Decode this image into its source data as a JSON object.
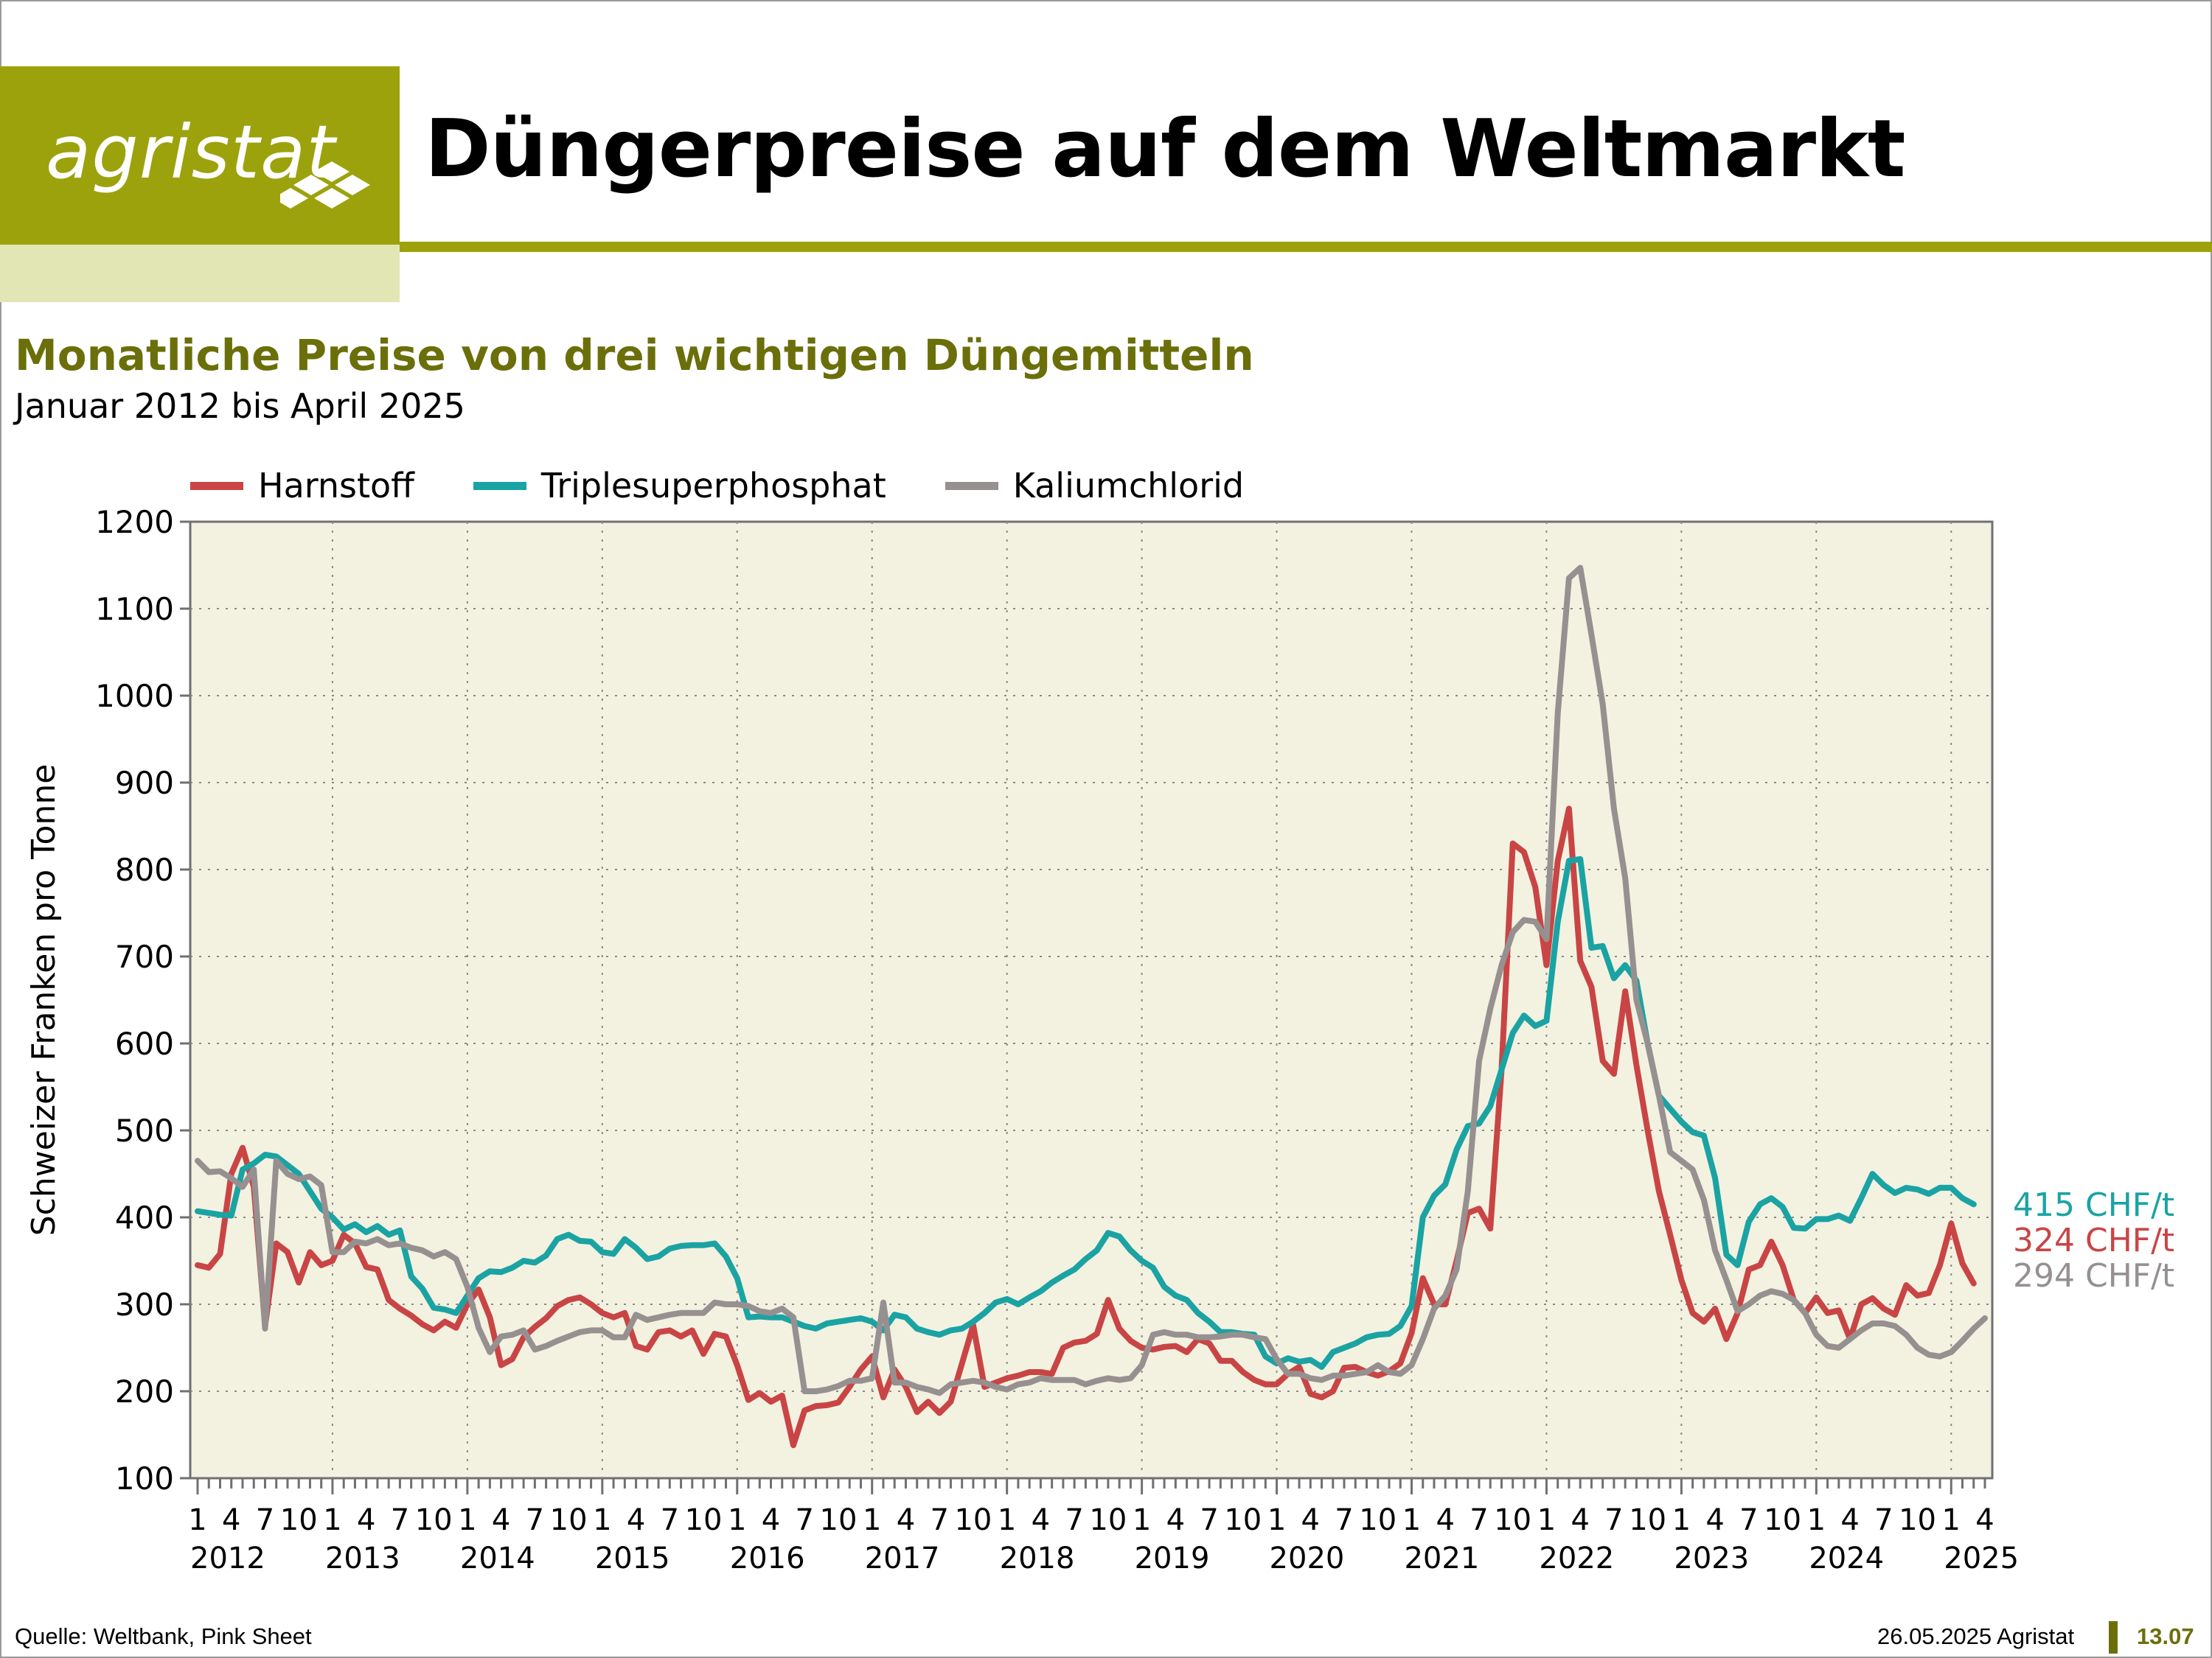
{
  "brand": {
    "logo_text": "agristat",
    "accent_color": "#9ca20c",
    "dark_accent": "#6b6f0a"
  },
  "header": {
    "title": "Düngerpreise auf dem Weltmarkt",
    "subtitle": "Monatliche Preise von drei wichtigen Düngemitteln",
    "date_range": "Januar 2012 bis April 2025"
  },
  "footer": {
    "source": "Quelle: Weltbank, Pink Sheet",
    "date": "26.05.2025 Agristat",
    "page": "13.07"
  },
  "chart_data": {
    "type": "line",
    "title": "",
    "ylabel": "Schweizer Franken pro Tonne",
    "xlabel": "",
    "ylim": [
      100,
      1200
    ],
    "yticks": [
      100,
      200,
      300,
      400,
      500,
      600,
      700,
      800,
      900,
      1000,
      1100,
      1200
    ],
    "y_tick_labels": [
      "100",
      "200",
      "300",
      "400",
      "500",
      "600",
      "700",
      "800",
      "900",
      "1000",
      "1100",
      "1200"
    ],
    "x_start": "2012-01",
    "x_end": "2025-04",
    "month_tick_labels": [
      "1",
      "4",
      "7",
      "10"
    ],
    "last_year_month_labels": [
      "1",
      "4"
    ],
    "year_labels": [
      "2012",
      "2013",
      "2014",
      "2015",
      "2016",
      "2017",
      "2018",
      "2019",
      "2020",
      "2021",
      "2022",
      "2023",
      "2024",
      "2025"
    ],
    "grid": true,
    "plot_background": "#f3f2e1",
    "legend_position": "top-left",
    "series": [
      {
        "name": "Harnstoff",
        "color": "#c94545",
        "end_label": "324 CHF/t",
        "values": [
          345,
          342,
          358,
          450,
          480,
          435,
          275,
          370,
          360,
          325,
          360,
          345,
          350,
          380,
          370,
          343,
          340,
          305,
          295,
          287,
          277,
          270,
          280,
          273,
          300,
          317,
          285,
          230,
          237,
          262,
          274,
          284,
          298,
          305,
          308,
          300,
          290,
          285,
          290,
          252,
          248,
          268,
          270,
          263,
          270,
          243,
          266,
          263,
          230,
          190,
          198,
          188,
          195,
          138,
          178,
          183,
          184,
          187,
          205,
          225,
          240,
          193,
          225,
          205,
          176,
          188,
          175,
          188,
          232,
          276,
          205,
          210,
          215,
          218,
          222,
          222,
          220,
          250,
          256,
          258,
          266,
          305,
          272,
          258,
          250,
          248,
          251,
          252,
          245,
          260,
          255,
          235,
          235,
          222,
          213,
          208,
          208,
          220,
          228,
          197,
          193,
          200,
          227,
          228,
          222,
          218,
          223,
          232,
          267,
          330,
          300,
          300,
          350,
          405,
          410,
          387,
          570,
          830,
          820,
          780,
          690,
          810,
          870,
          695,
          665,
          580,
          565,
          660,
          575,
          500,
          430,
          380,
          328,
          290,
          280,
          295,
          260,
          290,
          340,
          345,
          372,
          345,
          305,
          290,
          308,
          290,
          293,
          260,
          300,
          307,
          295,
          288,
          322,
          310,
          313,
          345,
          393,
          347,
          324
        ]
      },
      {
        "name": "Triplesuperphosphat",
        "color": "#1ba3a3",
        "end_label": "415 CHF/t",
        "values": [
          407,
          405,
          403,
          402,
          455,
          462,
          472,
          470,
          460,
          450,
          430,
          410,
          400,
          386,
          392,
          383,
          390,
          380,
          385,
          332,
          318,
          296,
          294,
          290,
          310,
          330,
          338,
          337,
          342,
          350,
          348,
          356,
          375,
          380,
          373,
          372,
          360,
          358,
          375,
          365,
          352,
          355,
          364,
          367,
          368,
          368,
          370,
          355,
          330,
          285,
          286,
          285,
          285,
          280,
          275,
          272,
          278,
          280,
          282,
          284,
          280,
          270,
          288,
          285,
          272,
          268,
          265,
          270,
          272,
          280,
          290,
          302,
          306,
          300,
          308,
          315,
          325,
          333,
          340,
          352,
          362,
          382,
          378,
          362,
          350,
          342,
          320,
          310,
          305,
          290,
          280,
          268,
          268,
          266,
          265,
          240,
          232,
          238,
          234,
          236,
          228,
          245,
          250,
          255,
          262,
          265,
          266,
          275,
          298,
          400,
          425,
          438,
          478,
          505,
          508,
          528,
          570,
          612,
          632,
          620,
          626,
          740,
          810,
          812,
          710,
          712,
          675,
          690,
          672,
          600,
          540,
          525,
          510,
          498,
          494,
          445,
          357,
          345,
          395,
          415,
          422,
          412,
          388,
          387,
          398,
          398,
          402,
          396,
          422,
          450,
          437,
          428,
          434,
          432,
          427,
          434,
          434,
          422,
          415
        ]
      },
      {
        "name": "Kaliumchlorid",
        "color": "#979090",
        "end_label": "294 CHF/t",
        "values": [
          465,
          452,
          453,
          445,
          435,
          455,
          272,
          465,
          450,
          444,
          447,
          437,
          360,
          360,
          372,
          370,
          375,
          368,
          370,
          365,
          362,
          355,
          360,
          352,
          320,
          273,
          245,
          263,
          265,
          270,
          248,
          252,
          258,
          263,
          268,
          270,
          270,
          262,
          262,
          288,
          282,
          285,
          288,
          290,
          290,
          290,
          302,
          300,
          300,
          298,
          292,
          290,
          295,
          285,
          200,
          200,
          202,
          206,
          212,
          212,
          215,
          302,
          210,
          210,
          205,
          202,
          198,
          208,
          210,
          212,
          210,
          205,
          202,
          208,
          210,
          215,
          213,
          213,
          213,
          208,
          212,
          215,
          213,
          215,
          230,
          265,
          268,
          265,
          265,
          262,
          262,
          263,
          265,
          265,
          262,
          260,
          237,
          220,
          220,
          215,
          213,
          218,
          218,
          220,
          222,
          230,
          222,
          220,
          230,
          260,
          295,
          310,
          340,
          430,
          580,
          640,
          690,
          728,
          742,
          740,
          720,
          980,
          1135,
          1147,
          1070,
          990,
          870,
          790,
          650,
          600,
          540,
          475,
          465,
          455,
          420,
          362,
          328,
          292,
          300,
          310,
          315,
          312,
          305,
          290,
          265,
          252,
          250,
          260,
          270,
          278,
          278,
          275,
          265,
          250,
          242,
          240,
          245,
          258,
          272,
          284,
          292,
          294
        ]
      }
    ]
  }
}
